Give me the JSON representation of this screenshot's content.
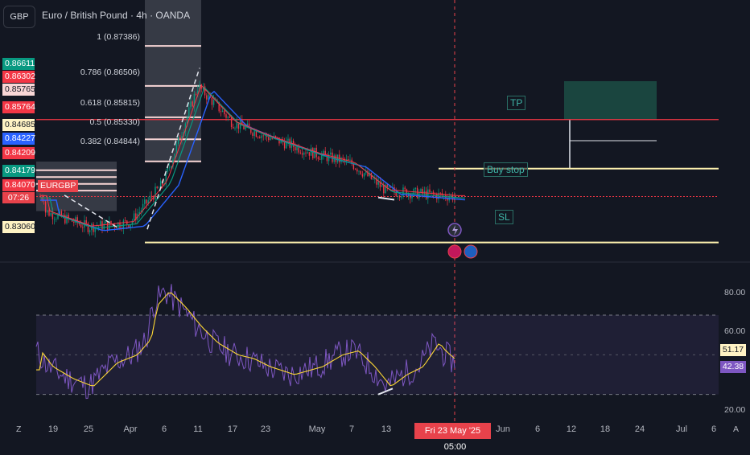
{
  "header": {
    "symbol_badge": "GBP",
    "title": "Euro / British Pound · 4h · OANDA"
  },
  "price_labels": [
    {
      "text": "0.86611",
      "bg": "#089981",
      "fg": "#ffffff"
    },
    {
      "text": "0.86302",
      "bg": "#f23645",
      "fg": "#ffffff"
    },
    {
      "text": "0.85765",
      "bg": "#f8d6d6",
      "fg": "#131722"
    },
    {
      "text": "0.85764",
      "bg": "#f23645",
      "fg": "#ffffff"
    },
    {
      "text": "0.84685",
      "bg": "#fff3c4",
      "fg": "#131722"
    },
    {
      "text": "0.84227",
      "bg": "#2962ff",
      "fg": "#ffffff"
    },
    {
      "text": "0.84209",
      "bg": "#f23645",
      "fg": "#ffffff"
    },
    {
      "text": "0.84179",
      "bg": "#089981",
      "fg": "#ffffff"
    },
    {
      "text": "0.84070",
      "bg": "#f23645",
      "fg": "#ffffff"
    },
    {
      "text": "0.83060",
      "bg": "#fff3c4",
      "fg": "#131722"
    }
  ],
  "symbol_tag": "EURGBP",
  "countdown": "07:26",
  "fib_levels": [
    {
      "text": "1 (0.87386)"
    },
    {
      "text": "0.786 (0.86506)"
    },
    {
      "text": "0.618 (0.85815)"
    },
    {
      "text": "0.5 (0.85330)"
    },
    {
      "text": "0.382 (0.84844)"
    }
  ],
  "annotations": {
    "tp": "TP",
    "buy_stop": "Buy stop",
    "sl": "SL"
  },
  "rsi_axis": [
    "80.00",
    "60.00",
    "20.00"
  ],
  "rsi_tags": [
    {
      "text": "51.17",
      "bg": "#fff3c4",
      "fg": "#131722"
    },
    {
      "text": "42.38",
      "bg": "#7e57c2",
      "fg": "#ffffff"
    }
  ],
  "x_axis": {
    "ticks": [
      "19",
      "25",
      "Apr",
      "6",
      "11",
      "17",
      "23",
      "May",
      "7",
      "13",
      "Jun",
      "6",
      "12",
      "18",
      "24",
      "Jul",
      "6"
    ],
    "highlighted_date": "Fri 23 May '25",
    "highlighted_time": "05:00",
    "left_icon": "Z",
    "right_icon": "A"
  },
  "colors": {
    "background": "#131722",
    "bull": "#089981",
    "bear": "#f23645",
    "ma_blue": "#2962ff",
    "ma_green": "#089981",
    "tp_zone": "#1c4d44",
    "line_yellow": "#fff3b0",
    "line_red": "#f23645",
    "rsi_line": "#7e57c2",
    "rsi_ma": "#fdd835"
  },
  "chart_data": {
    "type": "candlestick",
    "title": "Euro / British Pound · 4h · OANDA",
    "x": [
      "Mar 19",
      "Mar 25",
      "Apr 1",
      "Apr 6",
      "Apr 11",
      "Apr 17",
      "Apr 23",
      "May 1",
      "May 7",
      "May 13",
      "May 23"
    ],
    "close_approx": [
      0.8375,
      0.834,
      0.835,
      0.844,
      0.865,
      0.857,
      0.854,
      0.85,
      0.848,
      0.842,
      0.8407
    ],
    "ylim": [
      0.83,
      0.876
    ],
    "levels": {
      "tp": 0.85765,
      "buy_stop": 0.84685,
      "sl": 0.8306,
      "fib": [
        0.87386,
        0.86506,
        0.85815,
        0.8533,
        0.84844
      ]
    },
    "rsi": {
      "axis_ticks": [
        80,
        60,
        20
      ],
      "current": 42.38,
      "ma": 51.17,
      "bands": [
        70,
        30
      ]
    }
  }
}
